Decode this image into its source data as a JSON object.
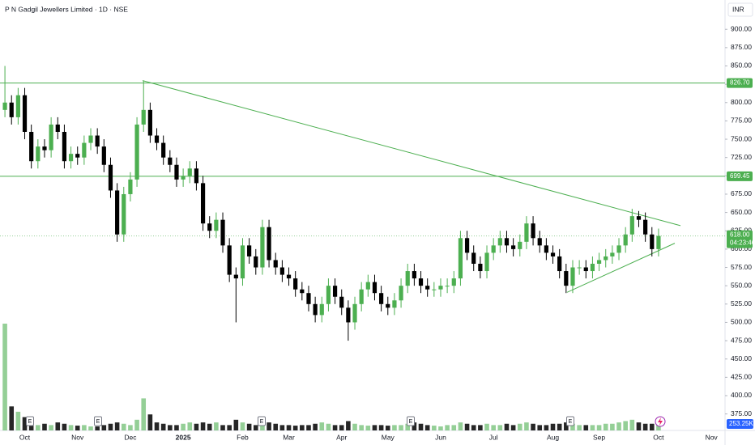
{
  "chart_data": {
    "type": "candlestick",
    "title": "P N Gadgil Jewellers Limited · 1D · NSE",
    "currency": "INR",
    "up_color": "#4caf50",
    "down_color": "#000000",
    "categories": [
      null,
      null,
      null,
      "Oct",
      null,
      null,
      null,
      null,
      null,
      null,
      null,
      "Nov",
      null,
      null,
      null,
      null,
      null,
      null,
      null,
      "Dec",
      null,
      null,
      null,
      null,
      null,
      null,
      null,
      "2025",
      null,
      null,
      null,
      null,
      null,
      null,
      null,
      null,
      "Feb",
      null,
      null,
      null,
      null,
      null,
      null,
      "Mar",
      null,
      null,
      null,
      null,
      null,
      null,
      null,
      "Apr",
      null,
      null,
      null,
      null,
      null,
      null,
      "May",
      null,
      null,
      null,
      null,
      null,
      null,
      null,
      "Jun",
      null,
      null,
      null,
      null,
      null,
      null,
      null,
      "Jul",
      null,
      null,
      null,
      null,
      null,
      null,
      null,
      null,
      "Aug",
      null,
      null,
      null,
      null,
      null,
      null,
      "Sep",
      null,
      null,
      null,
      null,
      null,
      null,
      null,
      null,
      "Oct",
      null,
      null,
      null,
      null,
      null,
      null,
      null,
      "Nov"
    ],
    "open": [
      790,
      800,
      780,
      810,
      760,
      720,
      740,
      735,
      770,
      760,
      720,
      730,
      725,
      745,
      755,
      740,
      715,
      680,
      620,
      675,
      695,
      770,
      790,
      755,
      745,
      725,
      715,
      695,
      700,
      710,
      690,
      635,
      625,
      640,
      605,
      565,
      560,
      605,
      590,
      575,
      630,
      585,
      575,
      565,
      560,
      545,
      540,
      525,
      510,
      525,
      550,
      535,
      520,
      500,
      525,
      545,
      555,
      540,
      525,
      520,
      530,
      550,
      570,
      560,
      550,
      545,
      545,
      550,
      550,
      560,
      615,
      595,
      580,
      570,
      595,
      605,
      615,
      605,
      600,
      610,
      635,
      615,
      605,
      595,
      590,
      570,
      550,
      575,
      575,
      570,
      580,
      585,
      590,
      595,
      605,
      620,
      645,
      640,
      620,
      600,
      null,
      null,
      null,
      null,
      null,
      null,
      null,
      null
    ],
    "high": [
      850,
      810,
      820,
      820,
      770,
      750,
      750,
      780,
      780,
      770,
      740,
      740,
      755,
      765,
      765,
      750,
      725,
      690,
      685,
      705,
      780,
      830,
      800,
      765,
      755,
      735,
      725,
      710,
      720,
      720,
      700,
      645,
      650,
      650,
      615,
      575,
      615,
      615,
      600,
      640,
      640,
      595,
      585,
      575,
      570,
      555,
      550,
      535,
      535,
      560,
      560,
      545,
      530,
      535,
      555,
      565,
      565,
      550,
      535,
      540,
      560,
      580,
      580,
      570,
      560,
      555,
      560,
      560,
      570,
      625,
      625,
      605,
      590,
      605,
      615,
      625,
      625,
      615,
      620,
      645,
      645,
      625,
      615,
      605,
      600,
      580,
      585,
      585,
      585,
      590,
      595,
      600,
      605,
      615,
      630,
      655,
      652,
      650,
      630,
      628,
      null,
      null,
      null,
      null,
      null,
      null,
      null,
      null
    ],
    "low": [
      780,
      770,
      770,
      750,
      710,
      710,
      725,
      725,
      750,
      710,
      710,
      715,
      715,
      735,
      730,
      705,
      670,
      610,
      610,
      665,
      685,
      760,
      745,
      735,
      715,
      705,
      685,
      685,
      690,
      680,
      625,
      615,
      615,
      595,
      555,
      500,
      550,
      580,
      565,
      565,
      575,
      565,
      555,
      550,
      535,
      530,
      515,
      500,
      500,
      515,
      525,
      510,
      475,
      490,
      515,
      535,
      530,
      515,
      510,
      510,
      520,
      540,
      550,
      540,
      535,
      535,
      535,
      540,
      540,
      550,
      585,
      570,
      560,
      560,
      585,
      595,
      595,
      590,
      590,
      600,
      605,
      595,
      585,
      580,
      560,
      540,
      540,
      565,
      560,
      560,
      570,
      575,
      580,
      585,
      595,
      610,
      630,
      610,
      590,
      590,
      null,
      null,
      null,
      null,
      null,
      null,
      null,
      null
    ],
    "close": [
      800,
      780,
      810,
      760,
      720,
      740,
      735,
      770,
      760,
      720,
      730,
      725,
      745,
      755,
      740,
      715,
      680,
      620,
      675,
      695,
      770,
      790,
      755,
      745,
      725,
      715,
      695,
      700,
      710,
      690,
      635,
      625,
      640,
      605,
      565,
      560,
      605,
      590,
      575,
      630,
      585,
      575,
      565,
      560,
      545,
      540,
      525,
      510,
      525,
      550,
      535,
      520,
      500,
      525,
      545,
      555,
      540,
      525,
      520,
      530,
      550,
      570,
      560,
      550,
      545,
      545,
      550,
      550,
      560,
      615,
      595,
      580,
      570,
      595,
      605,
      615,
      605,
      600,
      610,
      635,
      615,
      605,
      595,
      590,
      570,
      550,
      575,
      575,
      570,
      580,
      585,
      590,
      595,
      605,
      620,
      645,
      640,
      620,
      600,
      618,
      null,
      null,
      null,
      null,
      null,
      null,
      null,
      null
    ],
    "volume": [
      4000,
      900,
      700,
      500,
      300,
      200,
      250,
      200,
      300,
      250,
      200,
      180,
      200,
      150,
      150,
      200,
      250,
      300,
      250,
      200,
      400,
      1200,
      600,
      300,
      250,
      200,
      200,
      250,
      300,
      250,
      300,
      250,
      300,
      200,
      200,
      400,
      300,
      250,
      200,
      350,
      300,
      250,
      200,
      200,
      180,
      200,
      200,
      250,
      300,
      250,
      200,
      200,
      350,
      250,
      200,
      180,
      200,
      200,
      180,
      200,
      200,
      250,
      300,
      250,
      200,
      180,
      150,
      200,
      200,
      300,
      250,
      200,
      200,
      250,
      200,
      200,
      250,
      200,
      250,
      300,
      250,
      200,
      200,
      250,
      250,
      300,
      250,
      200,
      200,
      200,
      200,
      250,
      250,
      300,
      350,
      400,
      300,
      250,
      250,
      253.25,
      null,
      null,
      null,
      null,
      null,
      null,
      null,
      null
    ],
    "volume_last_label": "253.25K",
    "ylim": [
      352.5,
      940
    ],
    "yticks": [
      {
        "value": 900,
        "label": "900.00"
      },
      {
        "value": 875,
        "label": "875.00"
      },
      {
        "value": 850,
        "label": "850.00"
      },
      {
        "value": 825,
        "label": "825.00"
      },
      {
        "value": 800,
        "label": "800.00"
      },
      {
        "value": 775,
        "label": "775.00"
      },
      {
        "value": 750,
        "label": "750.00"
      },
      {
        "value": 725,
        "label": "725.00"
      },
      {
        "value": 700,
        "label": "700.00"
      },
      {
        "value": 675,
        "label": "675.00"
      },
      {
        "value": 650,
        "label": "650.00"
      },
      {
        "value": 625,
        "label": "625.00"
      },
      {
        "value": 600,
        "label": "600.00"
      },
      {
        "value": 575,
        "label": "575.00"
      },
      {
        "value": 550,
        "label": "550.00"
      },
      {
        "value": 525,
        "label": "525.00"
      },
      {
        "value": 500,
        "label": "500.00"
      },
      {
        "value": 475,
        "label": "475.00"
      },
      {
        "value": 450,
        "label": "450.00"
      },
      {
        "value": 425,
        "label": "425.00"
      },
      {
        "value": 400,
        "label": "400.00"
      },
      {
        "value": 375,
        "label": "375.00"
      }
    ],
    "levels": [
      {
        "value": 826.7,
        "label": "826.70"
      },
      {
        "value": 699.45,
        "label": "699.45"
      }
    ],
    "last_price": {
      "value": 618,
      "label": "618.00"
    },
    "countdown": "04:23:46",
    "trendlines": [
      {
        "start": 830,
        "end": 632
      },
      {
        "start": 541,
        "end": 608
      }
    ],
    "earnings_markers": [
      "E",
      "E",
      "E",
      "E",
      "E"
    ]
  }
}
